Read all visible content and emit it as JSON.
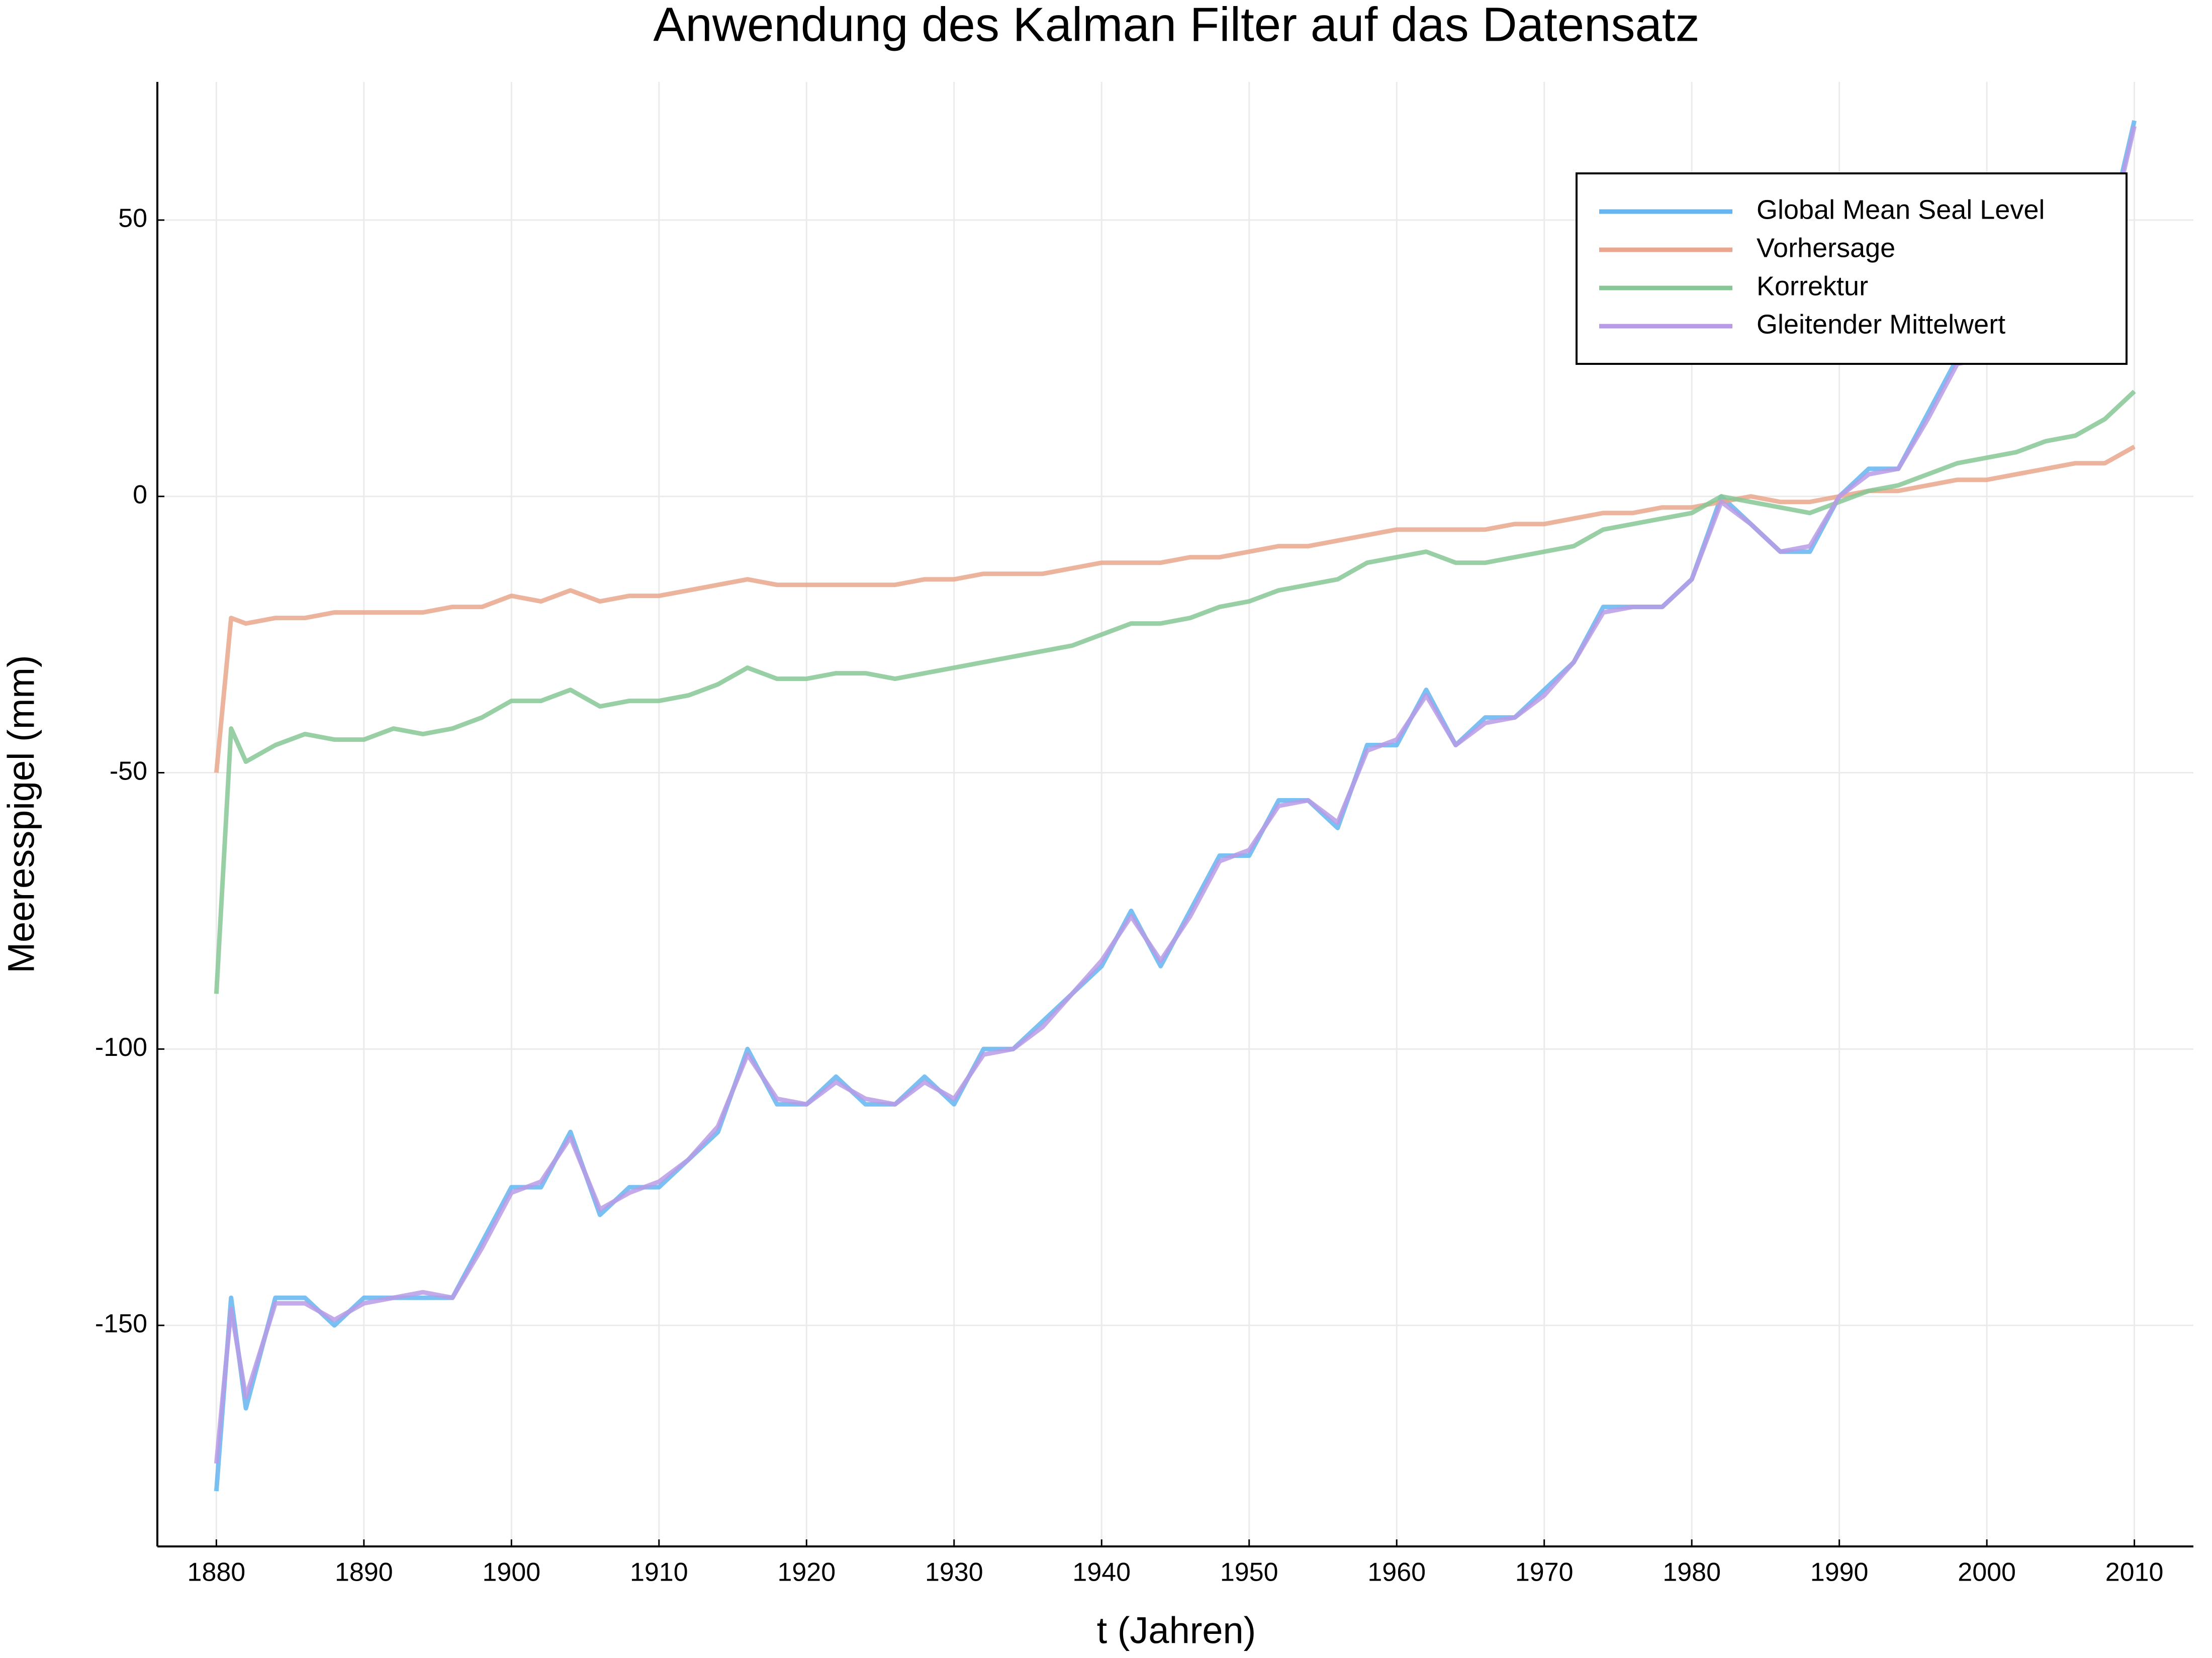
{
  "chart_data": {
    "type": "line",
    "title": "Anwendung des Kalman Filter auf das Datensatz",
    "x_label": "t (Jahren)",
    "y_label": "Meeresspigel (mm)",
    "x": [
      1880,
      1881,
      1882,
      1884,
      1886,
      1888,
      1890,
      1892,
      1894,
      1896,
      1898,
      1900,
      1902,
      1904,
      1906,
      1908,
      1910,
      1912,
      1914,
      1916,
      1918,
      1920,
      1922,
      1924,
      1926,
      1928,
      1930,
      1932,
      1934,
      1936,
      1938,
      1940,
      1942,
      1944,
      1946,
      1948,
      1950,
      1952,
      1954,
      1956,
      1958,
      1960,
      1962,
      1964,
      1966,
      1968,
      1970,
      1972,
      1974,
      1976,
      1978,
      1980,
      1982,
      1984,
      1986,
      1988,
      1990,
      1992,
      1994,
      1996,
      1998,
      2000,
      2002,
      2004,
      2006,
      2008,
      2010
    ],
    "series": [
      {
        "name": "Global Mean Seal Level",
        "color": "#64b5f0",
        "values": [
          -180,
          -145,
          -165,
          -145,
          -145,
          -150,
          -145,
          -145,
          -145,
          -145,
          -135,
          -125,
          -125,
          -115,
          -130,
          -125,
          -125,
          -120,
          -115,
          -100,
          -110,
          -110,
          -105,
          -110,
          -110,
          -105,
          -110,
          -100,
          -100,
          -95,
          -90,
          -85,
          -75,
          -85,
          -75,
          -65,
          -65,
          -55,
          -55,
          -60,
          -45,
          -45,
          -35,
          -45,
          -40,
          -40,
          -35,
          -30,
          -20,
          -20,
          -20,
          -15,
          0,
          -5,
          -10,
          -10,
          0,
          5,
          5,
          15,
          25,
          25,
          30,
          30,
          35,
          45,
          68
        ]
      },
      {
        "name": "Vorhersage",
        "color": "#e9a68c",
        "values": [
          -50,
          -22,
          -23,
          -22,
          -22,
          -21,
          -21,
          -21,
          -21,
          -20,
          -20,
          -18,
          -19,
          -17,
          -19,
          -18,
          -18,
          -17,
          -16,
          -15,
          -16,
          -16,
          -16,
          -16,
          -16,
          -15,
          -15,
          -14,
          -14,
          -14,
          -13,
          -12,
          -12,
          -12,
          -11,
          -11,
          -10,
          -9,
          -9,
          -8,
          -7,
          -6,
          -6,
          -6,
          -6,
          -5,
          -5,
          -4,
          -3,
          -3,
          -2,
          -2,
          -1,
          0,
          -1,
          -1,
          0,
          1,
          1,
          2,
          3,
          3,
          4,
          5,
          6,
          6,
          9
        ]
      },
      {
        "name": "Korrektur",
        "color": "#86c795",
        "values": [
          -90,
          -42,
          -48,
          -45,
          -43,
          -44,
          -44,
          -42,
          -43,
          -42,
          -40,
          -37,
          -37,
          -35,
          -38,
          -37,
          -37,
          -36,
          -34,
          -31,
          -33,
          -33,
          -32,
          -32,
          -33,
          -32,
          -31,
          -30,
          -29,
          -28,
          -27,
          -25,
          -23,
          -23,
          -22,
          -20,
          -19,
          -17,
          -16,
          -15,
          -12,
          -11,
          -10,
          -12,
          -12,
          -11,
          -10,
          -9,
          -6,
          -5,
          -4,
          -3,
          0,
          -1,
          -2,
          -3,
          -1,
          1,
          2,
          4,
          6,
          7,
          8,
          10,
          11,
          14,
          19
        ]
      },
      {
        "name": "Gleitender Mittelwert",
        "color": "#b89be6",
        "values": [
          -175,
          -147,
          -163,
          -146,
          -146,
          -149,
          -146,
          -145,
          -144,
          -145,
          -136,
          -126,
          -124,
          -116,
          -129,
          -126,
          -124,
          -120,
          -114,
          -101,
          -109,
          -110,
          -106,
          -109,
          -110,
          -106,
          -109,
          -101,
          -100,
          -96,
          -90,
          -84,
          -76,
          -84,
          -76,
          -66,
          -64,
          -56,
          -55,
          -59,
          -46,
          -44,
          -36,
          -45,
          -41,
          -40,
          -36,
          -30,
          -21,
          -20,
          -20,
          -15,
          -1,
          -5,
          -10,
          -9,
          0,
          4,
          5,
          14,
          24,
          25,
          29,
          30,
          35,
          44,
          67
        ]
      }
    ],
    "xlim": [
      1876,
      2014
    ],
    "ylim": [
      -190,
      75
    ],
    "xticks": [
      1880,
      1890,
      1900,
      1910,
      1920,
      1930,
      1940,
      1950,
      1960,
      1970,
      1980,
      1990,
      2000,
      2010
    ],
    "yticks": [
      -150,
      -100,
      -50,
      0,
      50
    ],
    "grid": true,
    "legend": "top-right"
  }
}
